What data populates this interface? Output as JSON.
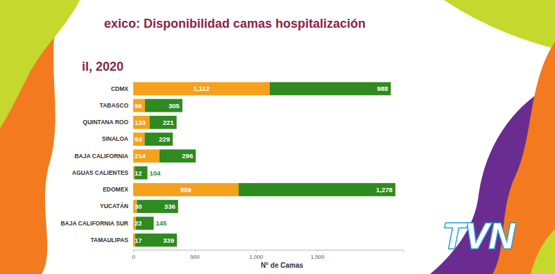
{
  "chart_data": {
    "type": "bar",
    "orientation": "horizontal",
    "stacked": true,
    "data_labels": true,
    "grid": false,
    "title": "exico: Disponibilidad camas hospitalización",
    "subtitle": "il, 2020",
    "xlabel": "N° de Camas",
    "annotations": [
      "TVN"
    ],
    "categories": [
      "CDMX",
      "TABASCO",
      "QUINTANA ROO",
      "SINALOA",
      "BAJA CALIFORNIA",
      "AGUAS CALIENTES",
      "EDOMEX",
      "YUCATÁN",
      "BAJA CALIFORNIA SUR",
      "TAMAULIPAS"
    ],
    "series": [
      {
        "color": "#f5a11c",
        "values": [
          1112,
          96,
          133,
          93,
          214,
          12,
          859,
          30,
          22,
          17
        ],
        "value_labels": [
          "1,112",
          "96",
          "133",
          "93",
          "214",
          "12",
          "859",
          "30",
          "22",
          "17"
        ]
      },
      {
        "color": "#2f8a1f",
        "values": [
          988,
          305,
          221,
          229,
          296,
          104,
          1278,
          336,
          145,
          339
        ],
        "value_labels": [
          "988",
          "305",
          "221",
          "229",
          "296",
          "104",
          "1,278",
          "336",
          "145",
          "339"
        ]
      }
    ],
    "xlim": [
      0,
      2200
    ],
    "xticks": [
      0,
      500,
      {
        "value": 1000,
        "label": "1,000"
      },
      {
        "value": 1500,
        "label": "1,500"
      }
    ]
  }
}
